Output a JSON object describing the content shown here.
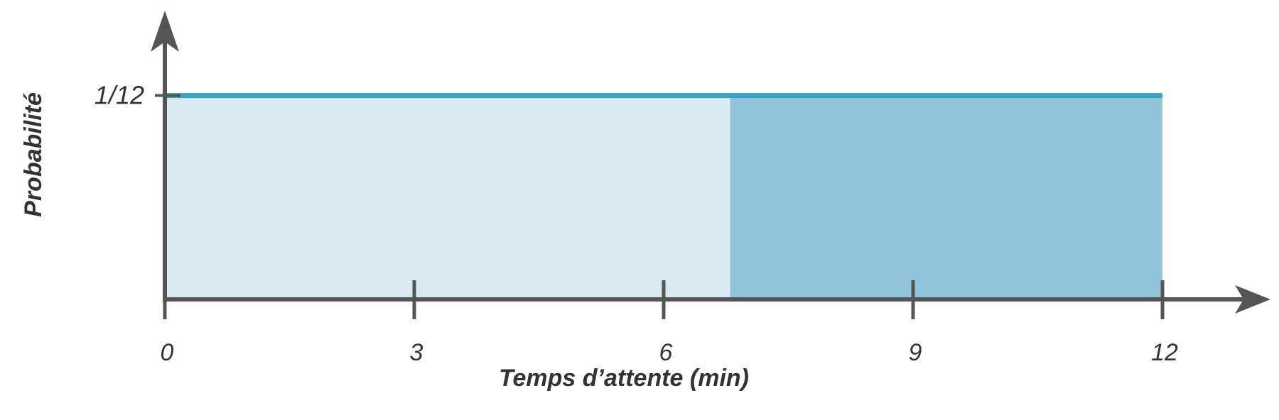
{
  "chart_data": {
    "type": "uniform",
    "x_label": "Temps d’attente (min)",
    "y_label": "Probabilité",
    "xlim": [
      0,
      13.3
    ],
    "ylim": [
      0,
      0.118
    ],
    "xticks": [
      0,
      3,
      6,
      9,
      12
    ],
    "yticks": [
      {
        "value": 0.0833,
        "label": "1/12"
      }
    ],
    "series": [
      {
        "x": [
          0,
          12
        ],
        "values": [
          0.0833,
          0.0833
        ],
        "color": "#d8eaf0",
        "line_color": "#3aa3c6"
      }
    ],
    "highlight": {
      "range": [
        6.8,
        12
      ],
      "color": "#92c5da"
    },
    "axis_color": "#555555"
  }
}
